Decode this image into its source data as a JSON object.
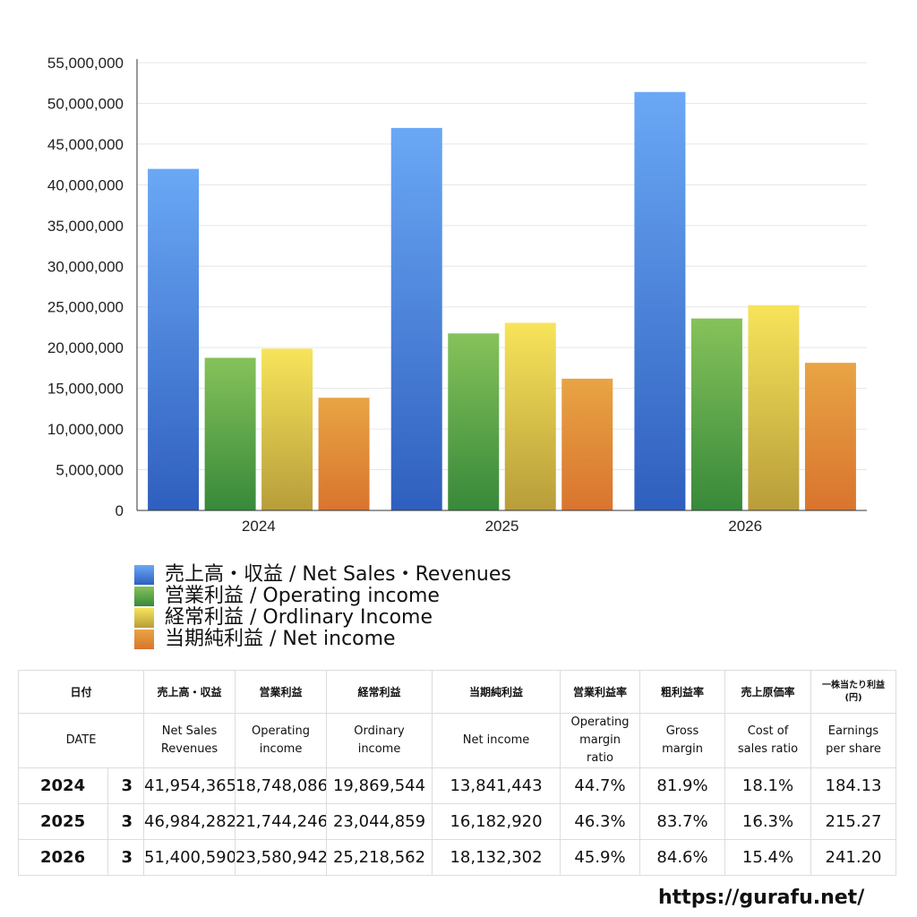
{
  "chart_data": {
    "type": "bar",
    "categories": [
      "2024",
      "2025",
      "2026"
    ],
    "series": [
      {
        "name": "売上高・収益 / Net Sales・Revenues",
        "values": [
          41954365,
          46984282,
          51400590
        ],
        "color_top": "#6aa8f5",
        "color_bottom": "#2f5fbe"
      },
      {
        "name": "営業利益 / Operating income",
        "values": [
          18748086,
          21744246,
          23580942
        ],
        "color_top": "#86c25a",
        "color_bottom": "#37893a"
      },
      {
        "name": "経常利益 / Ordlinary Income",
        "values": [
          19869544,
          23044859,
          25218562
        ],
        "color_top": "#f7e45a",
        "color_bottom": "#b89d3a"
      },
      {
        "name": "当期純利益 / Net income",
        "values": [
          13841443,
          16182920,
          18132302
        ],
        "color_top": "#e8a444",
        "color_bottom": "#d9742e"
      }
    ],
    "ylim": [
      0,
      55000000
    ],
    "yticks": [
      0,
      5000000,
      10000000,
      15000000,
      20000000,
      25000000,
      30000000,
      35000000,
      40000000,
      45000000,
      50000000,
      55000000
    ],
    "ytick_labels": [
      "0",
      "5,000,000",
      "10,000,000",
      "15,000,000",
      "20,000,000",
      "25,000,000",
      "30,000,000",
      "35,000,000",
      "40,000,000",
      "45,000,000",
      "50,000,000",
      "55,000,000"
    ],
    "grid": true,
    "legend_position": "bottom"
  },
  "table": {
    "header_jp": [
      "日付",
      "売上高・収益",
      "営業利益",
      "経常利益",
      "当期純利益",
      "営業利益率",
      "粗利益率",
      "売上原価率",
      "一株当たり利益\n(円)"
    ],
    "header_en": [
      "DATE",
      "Net Sales\nRevenues",
      "Operating\nincome",
      "Ordinary\nincome",
      "Net income",
      "Operating\nmargin\nratio",
      "Gross\nmargin",
      "Cost of\nsales ratio",
      "Earnings\nper share"
    ],
    "rows": [
      {
        "year": "2024",
        "month": "3",
        "sales": "41,954,365",
        "operating": "18,748,086",
        "ordinary": "19,869,544",
        "net": "13,841,443",
        "op_margin": "44.7%",
        "gross_margin": "81.9%",
        "cost_ratio": "18.1%",
        "eps": "184.13"
      },
      {
        "year": "2025",
        "month": "3",
        "sales": "46,984,282",
        "operating": "21,744,246",
        "ordinary": "23,044,859",
        "net": "16,182,920",
        "op_margin": "46.3%",
        "gross_margin": "83.7%",
        "cost_ratio": "16.3%",
        "eps": "215.27"
      },
      {
        "year": "2026",
        "month": "3",
        "sales": "51,400,590",
        "operating": "23,580,942",
        "ordinary": "25,218,562",
        "net": "18,132,302",
        "op_margin": "45.9%",
        "gross_margin": "84.6%",
        "cost_ratio": "15.4%",
        "eps": "241.20"
      }
    ]
  },
  "footer": {
    "site": "https://gurafu.net/"
  }
}
